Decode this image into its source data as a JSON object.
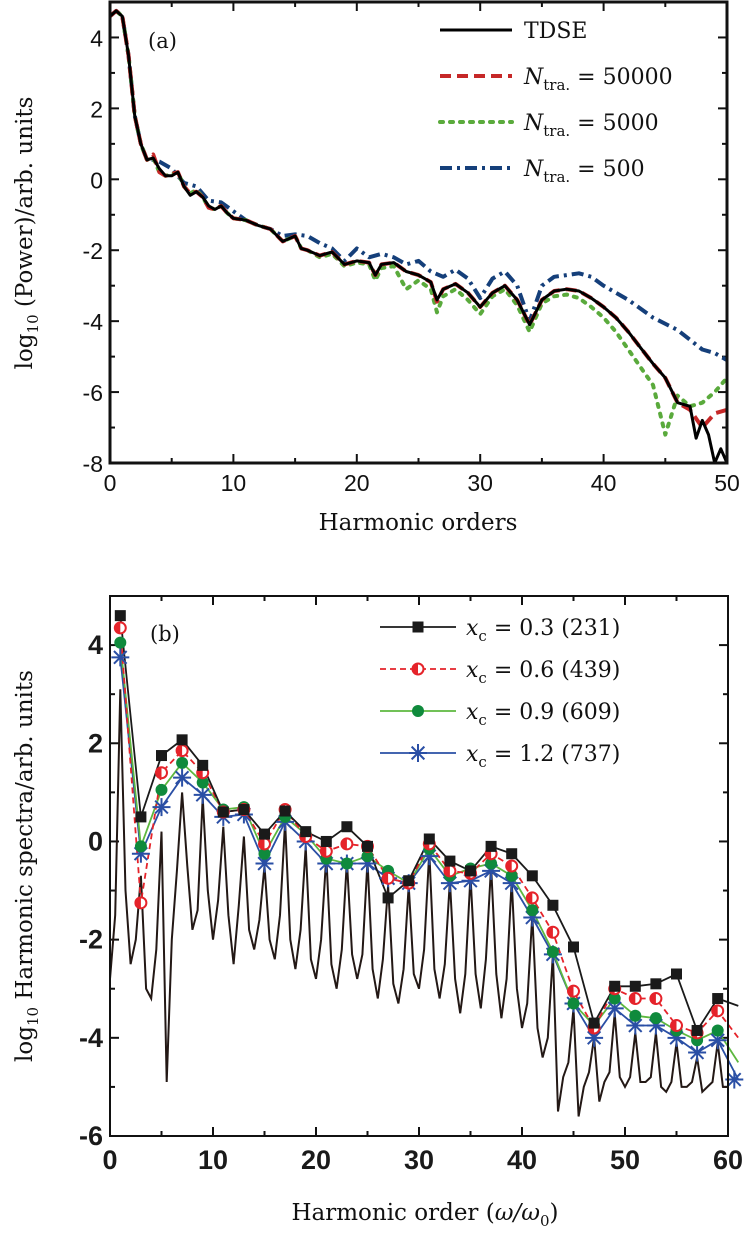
{
  "chart_data": [
    {
      "type": "line",
      "panel_label": "(a)",
      "xlabel": "Harmonic orders",
      "ylabel": {
        "prefix": "log",
        "sub": "10",
        "rest": " (Power)/arb. units"
      },
      "xlim": [
        0,
        50
      ],
      "ylim": [
        -8,
        5
      ],
      "xticks": [
        0,
        10,
        20,
        30,
        40,
        50
      ],
      "yticks": [
        4,
        2,
        0,
        -2,
        -4,
        -6,
        -8
      ],
      "grid": false,
      "legend_position": "top-right",
      "series": [
        {
          "name": "TDSE",
          "legend": {
            "symbol": "TDSE",
            "sub": "",
            "rest": ""
          },
          "color": "#000000",
          "dash": "solid",
          "x": [
            0,
            0.5,
            1,
            1.5,
            2,
            2.5,
            3,
            3.5,
            4,
            4.5,
            5,
            5.5,
            6,
            6.5,
            7,
            7.5,
            8,
            8.5,
            9,
            9.5,
            10,
            11,
            12,
            13,
            14,
            15,
            15.5,
            16,
            17,
            18,
            19,
            20,
            21,
            21.5,
            22,
            23,
            24,
            25,
            26,
            26.5,
            27,
            28,
            29,
            30,
            31,
            32,
            33,
            34,
            35,
            36,
            37,
            38,
            39,
            40,
            41,
            42,
            43,
            44,
            45,
            46,
            47,
            47.5,
            48,
            48.5,
            49,
            49.5,
            50
          ],
          "y": [
            4.6,
            4.75,
            4.6,
            3.5,
            1.8,
            1.0,
            0.55,
            0.6,
            0.3,
            0.1,
            0.1,
            0.2,
            -0.2,
            -0.45,
            -0.35,
            -0.5,
            -0.75,
            -0.85,
            -0.75,
            -0.95,
            -1.1,
            -1.15,
            -1.3,
            -1.4,
            -1.75,
            -1.6,
            -1.95,
            -2.0,
            -2.15,
            -2.05,
            -2.4,
            -2.3,
            -2.35,
            -2.7,
            -2.4,
            -2.35,
            -2.6,
            -2.7,
            -2.9,
            -3.4,
            -3.1,
            -2.95,
            -3.2,
            -3.6,
            -3.2,
            -3.0,
            -3.4,
            -4.1,
            -3.4,
            -3.15,
            -3.1,
            -3.15,
            -3.35,
            -3.6,
            -3.9,
            -4.3,
            -4.75,
            -5.2,
            -5.6,
            -6.3,
            -6.4,
            -7.3,
            -6.8,
            -7.2,
            -8.0,
            -7.6,
            -8.0
          ]
        },
        {
          "name": "N_tra. = 50000",
          "legend": {
            "symbol": "N",
            "sub": "tra.",
            "rest": " = 50000"
          },
          "color": "#c62828",
          "dash": "dashed",
          "x": [
            0,
            0.5,
            1,
            1.5,
            2,
            2.5,
            3,
            3.5,
            4,
            4.5,
            5,
            5.5,
            6,
            6.5,
            7,
            7.5,
            8,
            8.5,
            9,
            9.5,
            10,
            11,
            12,
            13,
            14,
            15,
            15.5,
            16,
            17,
            18,
            19,
            20,
            21,
            21.5,
            22,
            23,
            24,
            25,
            26,
            26.5,
            27,
            28,
            29,
            30,
            31,
            32,
            33,
            34,
            35,
            36,
            37,
            38,
            39,
            40,
            41,
            42,
            43,
            44,
            45,
            46,
            47,
            48,
            49,
            50
          ],
          "y": [
            4.6,
            4.75,
            4.6,
            3.5,
            1.8,
            1.0,
            0.55,
            0.7,
            0.2,
            0.1,
            0.15,
            0.2,
            -0.2,
            -0.4,
            -0.35,
            -0.5,
            -0.8,
            -0.85,
            -0.75,
            -0.95,
            -1.1,
            -1.15,
            -1.3,
            -1.4,
            -1.75,
            -1.6,
            -1.95,
            -2.0,
            -2.15,
            -2.05,
            -2.4,
            -2.3,
            -2.35,
            -2.7,
            -2.4,
            -2.35,
            -2.6,
            -2.7,
            -2.9,
            -3.45,
            -3.1,
            -2.95,
            -3.2,
            -3.6,
            -3.2,
            -3.0,
            -3.4,
            -4.1,
            -3.4,
            -3.15,
            -3.1,
            -3.15,
            -3.35,
            -3.6,
            -3.9,
            -4.3,
            -4.75,
            -5.2,
            -5.6,
            -6.3,
            -6.5,
            -7.0,
            -6.6,
            -6.5
          ]
        },
        {
          "name": "N_tra. = 5000",
          "legend": {
            "symbol": "N",
            "sub": "tra.",
            "rest": " = 5000"
          },
          "color": "#5aaa3c",
          "dash": "dotted",
          "x": [
            0,
            0.5,
            1,
            1.5,
            2,
            2.5,
            3,
            3.5,
            4,
            4.5,
            5,
            5.5,
            6,
            6.5,
            7,
            7.5,
            8,
            8.5,
            9,
            9.5,
            10,
            11,
            12,
            13,
            14,
            15,
            15.5,
            16,
            17,
            18,
            19,
            20,
            21,
            21.5,
            22,
            23,
            24,
            25,
            26,
            26.5,
            27,
            28,
            29,
            30,
            31,
            32,
            33,
            34,
            35,
            36,
            37,
            38,
            39,
            40,
            41,
            42,
            43,
            44,
            45,
            46,
            47,
            48,
            49,
            50
          ],
          "y": [
            4.6,
            4.75,
            4.6,
            3.5,
            1.8,
            1.0,
            0.55,
            0.6,
            0.2,
            0.1,
            0.15,
            0.2,
            -0.2,
            -0.4,
            -0.3,
            -0.5,
            -0.8,
            -0.85,
            -0.75,
            -0.95,
            -1.1,
            -1.15,
            -1.3,
            -1.4,
            -1.75,
            -1.6,
            -1.95,
            -2.0,
            -2.2,
            -2.1,
            -2.45,
            -2.35,
            -2.4,
            -2.85,
            -2.5,
            -2.45,
            -3.1,
            -2.85,
            -3.1,
            -3.75,
            -3.3,
            -3.1,
            -3.4,
            -3.8,
            -3.3,
            -3.1,
            -3.55,
            -4.3,
            -3.5,
            -3.3,
            -3.25,
            -3.35,
            -3.6,
            -3.9,
            -4.3,
            -4.8,
            -5.3,
            -5.8,
            -7.2,
            -6.1,
            -6.4,
            -6.3,
            -6.0,
            -5.6
          ]
        },
        {
          "name": "N_tra. = 500",
          "legend": {
            "symbol": "N",
            "sub": "tra.",
            "rest": " = 500"
          },
          "color": "#153f7a",
          "dash": "dashdot",
          "x": [
            0,
            0.5,
            1,
            1.5,
            2,
            2.5,
            3,
            3.5,
            4,
            5,
            6,
            7,
            8,
            9,
            10,
            11,
            12,
            13,
            14,
            15,
            16,
            17,
            18,
            19,
            20,
            21,
            22,
            23,
            24,
            25,
            26,
            27,
            28,
            29,
            30,
            31,
            32,
            33,
            34,
            35,
            36,
            37,
            38,
            39,
            40,
            42,
            44,
            46,
            48,
            49,
            50
          ],
          "y": [
            4.6,
            4.75,
            4.6,
            3.5,
            1.8,
            1.0,
            0.55,
            0.55,
            0.5,
            0.3,
            -0.1,
            -0.2,
            -0.6,
            -0.65,
            -0.9,
            -1.15,
            -1.3,
            -1.4,
            -1.6,
            -1.55,
            -1.6,
            -1.8,
            -1.95,
            -2.3,
            -1.95,
            -2.2,
            -2.1,
            -2.2,
            -2.4,
            -2.3,
            -2.6,
            -2.75,
            -2.55,
            -2.8,
            -3.35,
            -2.8,
            -2.6,
            -3.0,
            -4.0,
            -3.0,
            -2.75,
            -2.7,
            -2.65,
            -2.75,
            -3.0,
            -3.4,
            -3.9,
            -4.25,
            -4.8,
            -4.9,
            -5.1
          ]
        }
      ]
    },
    {
      "type": "line",
      "panel_label": "(b)",
      "xlabel": {
        "prefix": "Harmonic order (",
        "symbol": "ω/ω",
        "sub": "0",
        "rest": ")"
      },
      "ylabel": {
        "prefix": "log",
        "sub": "10",
        "rest": " Harmonic spectra/arb. units"
      },
      "xlim": [
        0,
        60
      ],
      "ylim": [
        -6,
        5
      ],
      "xticks": [
        0,
        10,
        20,
        30,
        40,
        50,
        60
      ],
      "yticks": [
        4,
        2,
        0,
        -2,
        -4,
        -6
      ],
      "grid": false,
      "legend_position": "top-right",
      "background_trace": {
        "color": "#231815",
        "x_start": 0,
        "x_step": 0.5,
        "y": [
          -2.8,
          -1.5,
          3.1,
          -1.0,
          -2.5,
          -2.0,
          -0.7,
          -3.0,
          -3.2,
          -2.2,
          0.2,
          -4.9,
          -2.0,
          -0.6,
          1.0,
          -0.5,
          -1.8,
          -1.4,
          0.9,
          -1.0,
          -2.0,
          -1.2,
          0.3,
          -1.5,
          -2.5,
          -1.3,
          0.1,
          -1.8,
          -2.2,
          -1.6,
          -0.5,
          -2.0,
          -2.4,
          -1.5,
          0.4,
          -2.0,
          -2.6,
          -1.8,
          -0.1,
          -2.4,
          -2.8,
          -2.0,
          -0.3,
          -2.5,
          -3.0,
          -2.2,
          -0.4,
          -2.3,
          -2.8,
          -2.3,
          -0.4,
          -2.6,
          -3.2,
          -2.4,
          -0.9,
          -2.9,
          -3.3,
          -2.6,
          -0.9,
          -2.7,
          -3.0,
          -2.2,
          -0.2,
          -2.6,
          -3.2,
          -2.5,
          -0.8,
          -2.8,
          -3.5,
          -2.7,
          -0.7,
          -2.7,
          -3.4,
          -2.4,
          -0.5,
          -2.7,
          -3.6,
          -2.8,
          -0.8,
          -3.0,
          -3.8,
          -3.3,
          -1.5,
          -3.8,
          -4.4,
          -4.0,
          -2.3,
          -5.5,
          -4.8,
          -4.5,
          -3.4,
          -5.6,
          -5.0,
          -4.7,
          -4.0,
          -5.3,
          -4.9,
          -4.7,
          -3.5,
          -4.8,
          -5.0,
          -4.8,
          -3.9,
          -4.9,
          -4.9,
          -4.8,
          -3.9,
          -5.0,
          -5.1,
          -4.9,
          -4.1,
          -5.0,
          -5.0,
          -4.9,
          -4.4,
          -5.1,
          -5.0,
          -4.9,
          -4.1,
          -5.0,
          -5.0
        ]
      },
      "x": [
        1,
        3,
        5,
        7,
        9,
        11,
        13,
        15,
        17,
        19,
        21,
        23,
        25,
        27,
        29,
        31,
        33,
        35,
        37,
        39,
        41,
        43,
        45,
        47,
        49,
        51,
        53,
        55,
        57,
        59
      ],
      "series": [
        {
          "name": "x_c = 0.3 (231)",
          "legend": {
            "symbol": "x",
            "sub": "c",
            "rest": " = 0.3 (231)"
          },
          "color": "#1a1a1a",
          "marker": "square",
          "dash": "solid",
          "tail": [
            61,
            -3.35
          ],
          "y": [
            4.6,
            0.5,
            1.75,
            2.07,
            1.55,
            0.6,
            0.65,
            0.15,
            0.62,
            0.2,
            0.0,
            0.3,
            -0.1,
            -1.15,
            -0.8,
            0.05,
            -0.4,
            -0.6,
            -0.1,
            -0.25,
            -0.7,
            -1.3,
            -2.15,
            -3.7,
            -2.95,
            -2.95,
            -2.9,
            -2.7,
            -3.85,
            -3.2
          ]
        },
        {
          "name": "x_c = 0.6 (439)",
          "legend": {
            "symbol": "x",
            "sub": "c",
            "rest": " = 0.6 (439)"
          },
          "color": "#e5232a",
          "marker": "half-circle",
          "dash": "dashed",
          "tail": [
            61,
            -4.0
          ],
          "y": [
            4.35,
            -1.25,
            1.4,
            1.85,
            1.4,
            0.6,
            0.65,
            -0.05,
            0.65,
            0.1,
            -0.2,
            -0.05,
            -0.1,
            -0.75,
            -0.85,
            -0.05,
            -0.6,
            -0.65,
            -0.25,
            -0.5,
            -1.15,
            -1.85,
            -3.05,
            -3.8,
            -3.0,
            -3.2,
            -3.2,
            -3.75,
            -3.9,
            -3.45
          ]
        },
        {
          "name": "x_c = 0.9 (609)",
          "legend": {
            "symbol": "x",
            "sub": "c",
            "rest": " = 0.9 (609)"
          },
          "color": "#5db83f",
          "marker_color": "#0f8a3c",
          "marker": "circle",
          "dash": "solid",
          "tail": [
            61,
            -4.5
          ],
          "y": [
            4.05,
            -0.1,
            1.05,
            1.6,
            1.2,
            0.65,
            0.7,
            -0.25,
            0.5,
            0.15,
            -0.35,
            -0.45,
            -0.3,
            -0.6,
            -0.85,
            -0.15,
            -0.7,
            -0.55,
            -0.45,
            -0.7,
            -1.4,
            -2.25,
            -3.3,
            -3.75,
            -3.2,
            -3.55,
            -3.6,
            -3.85,
            -4.05,
            -3.85
          ]
        },
        {
          "name": "x_c = 1.2 (737)",
          "legend": {
            "symbol": "x",
            "sub": "c",
            "rest": " = 1.2 (737)"
          },
          "color": "#2a4fa5",
          "marker": "asterisk",
          "dash": "solid",
          "tail": [
            61,
            -4.85
          ],
          "y": [
            3.75,
            -0.25,
            0.7,
            1.3,
            0.95,
            0.5,
            0.55,
            -0.45,
            0.4,
            0.0,
            -0.45,
            -0.45,
            -0.45,
            -0.75,
            -0.85,
            -0.3,
            -0.85,
            -0.8,
            -0.6,
            -0.85,
            -1.55,
            -2.3,
            -3.3,
            -4.0,
            -3.4,
            -3.75,
            -3.75,
            -4.0,
            -4.3,
            -4.05
          ]
        }
      ]
    }
  ]
}
